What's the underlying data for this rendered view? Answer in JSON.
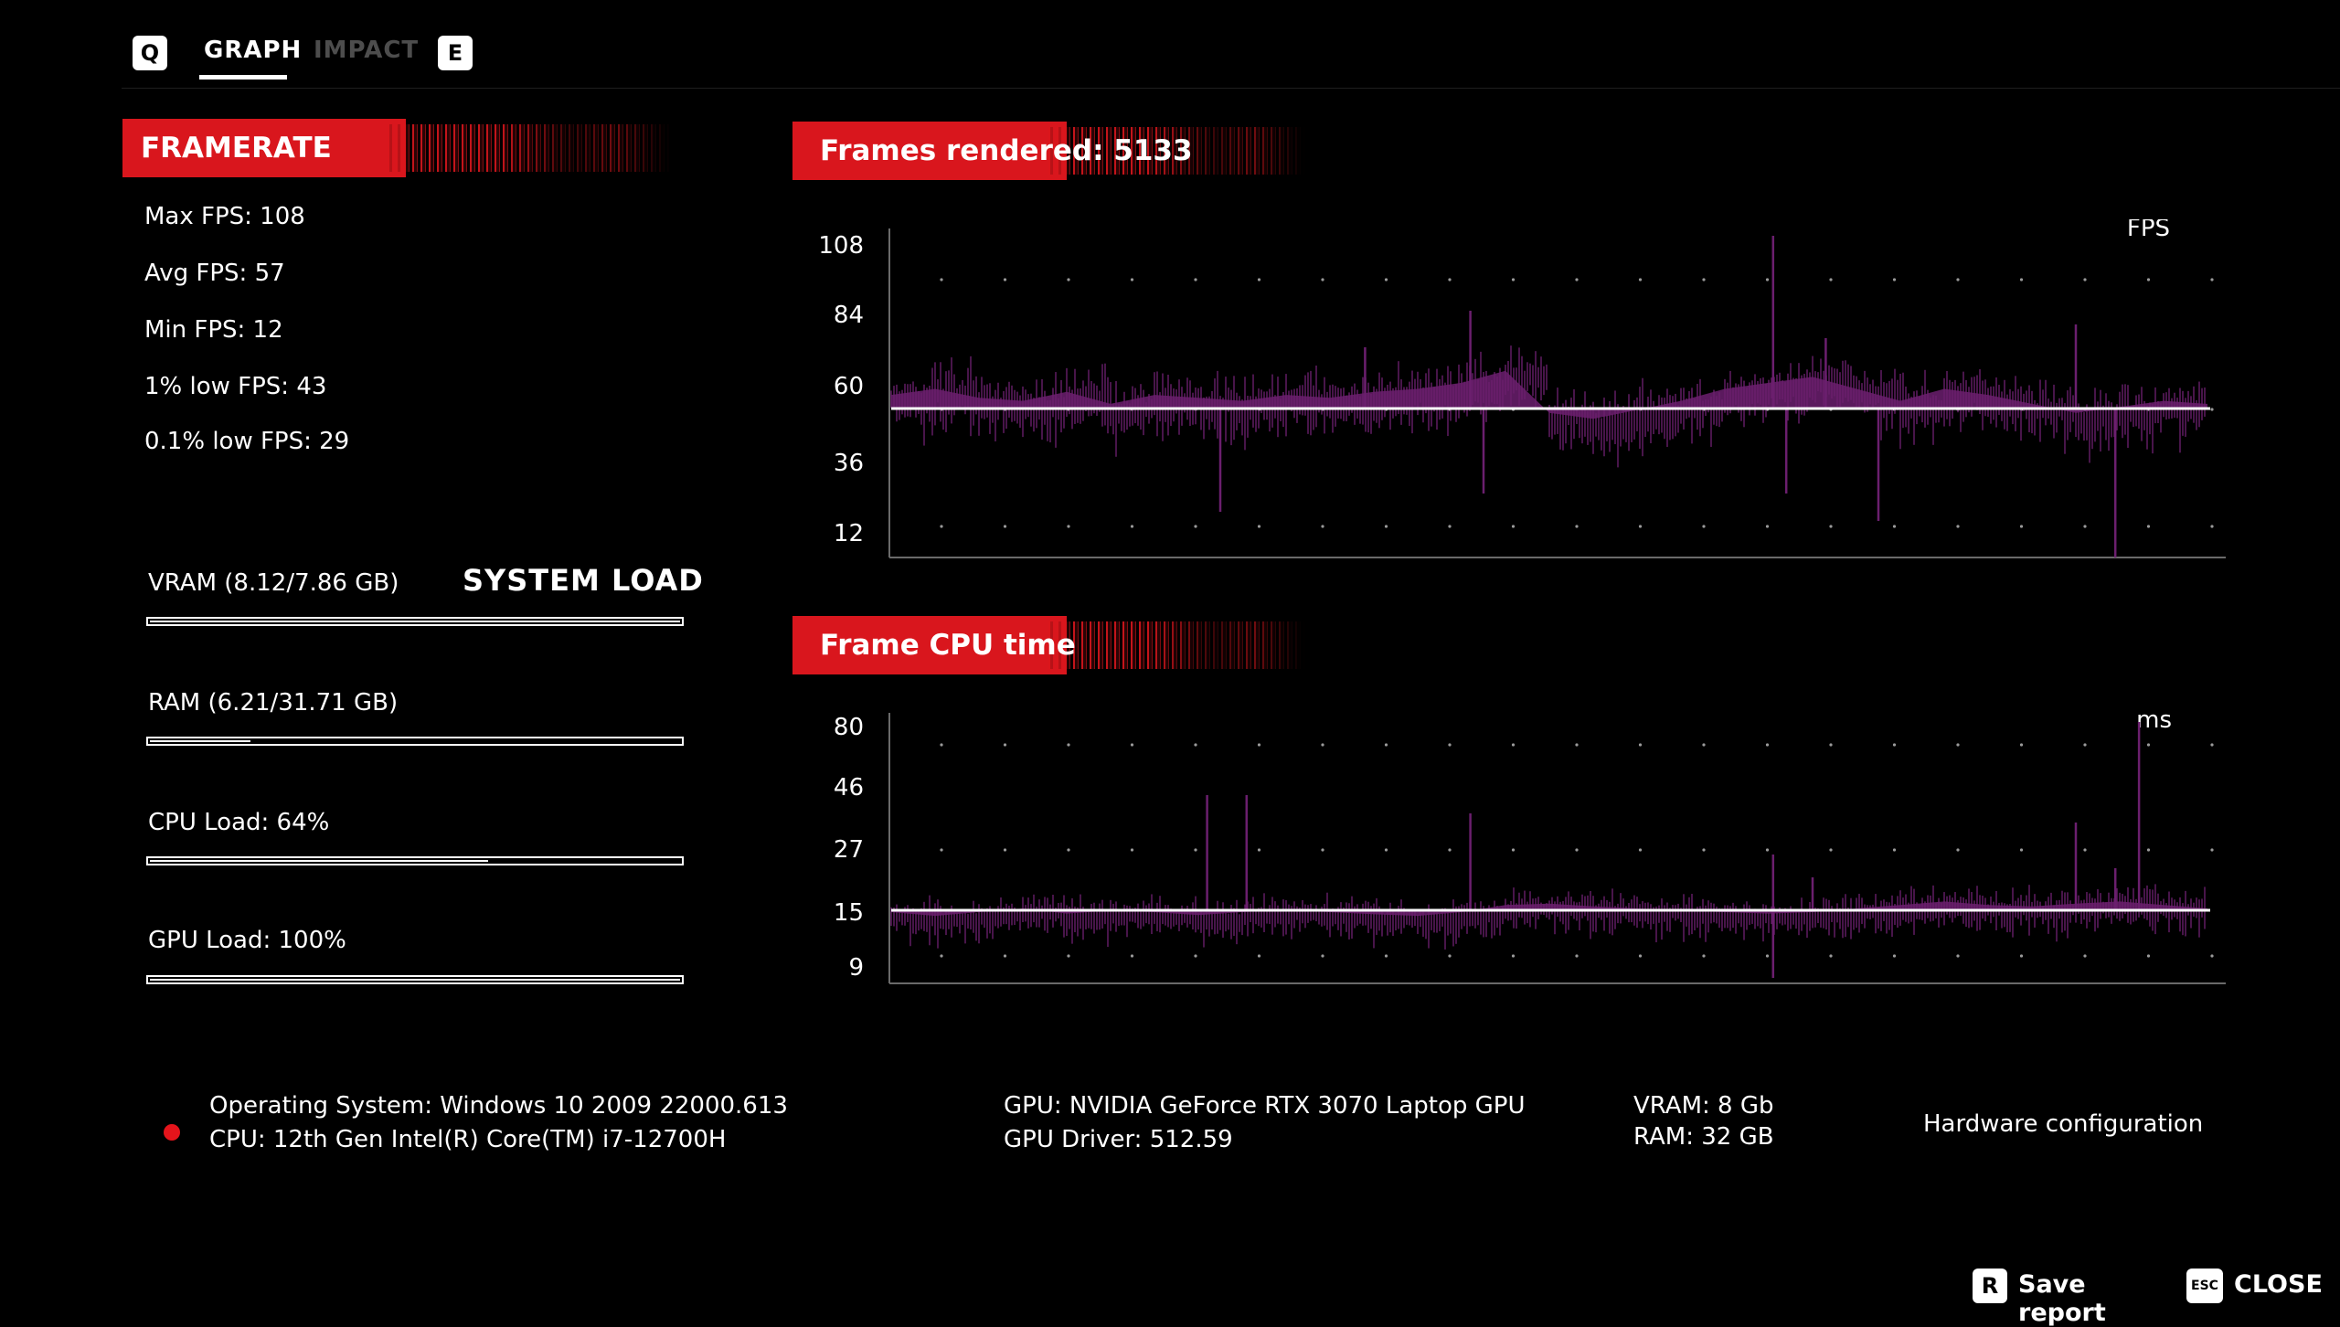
{
  "tabs": {
    "left_key": "Q",
    "right_key": "E",
    "items": [
      {
        "label": "GRAPH",
        "active": true
      },
      {
        "label": "IMPACT",
        "active": false
      }
    ]
  },
  "framerate": {
    "title": "FRAMERATE",
    "stats": [
      "Max FPS: 108",
      "Avg FPS: 57",
      "Min FPS: 12",
      "1% low FPS: 43",
      "0.1% low FPS: 29"
    ]
  },
  "system_load": {
    "title": "SYSTEM LOAD",
    "items": [
      {
        "label": "VRAM (8.12/7.86 GB)",
        "fraction": 1.0
      },
      {
        "label": "RAM (6.21/31.71 GB)",
        "fraction": 0.196
      },
      {
        "label": "CPU Load: 64%",
        "fraction": 0.64
      },
      {
        "label": "GPU Load: 100%",
        "fraction": 1.0
      }
    ]
  },
  "fps_chart": {
    "title": "Frames rendered: 5133",
    "unit": "FPS",
    "y_ticks": [
      "108",
      "84",
      "60",
      "36",
      "12"
    ]
  },
  "cpu_chart": {
    "title": "Frame CPU time",
    "unit": "ms",
    "y_ticks": [
      "80",
      "46",
      "27",
      "15",
      "9"
    ]
  },
  "chart_data": [
    {
      "type": "line",
      "title": "Frames rendered: 5133",
      "ylabel": "FPS",
      "y_ticks": [
        108,
        84,
        60,
        36,
        12
      ],
      "ylim": [
        12,
        108
      ],
      "grid": true,
      "series": [
        {
          "values": [
            58,
            60,
            57,
            56,
            59,
            55,
            58,
            57,
            56,
            58,
            57,
            59,
            60,
            62,
            66,
            52,
            50,
            53,
            56,
            60,
            62,
            64,
            60,
            56,
            60,
            58,
            55,
            52,
            54,
            56,
            55
          ]
        }
      ],
      "average": 57
    },
    {
      "type": "line",
      "title": "Frame CPU time",
      "ylabel": "ms",
      "y_ticks": [
        80,
        46,
        27,
        15,
        9
      ],
      "scale": "log",
      "grid": true,
      "series": [
        {
          "values": [
            15,
            14.5,
            15,
            15.5,
            14.8,
            15.2,
            15,
            14.6,
            15,
            15.3,
            15,
            14.7,
            14.5,
            15,
            16,
            16.2,
            15.8,
            15.5,
            15.2,
            15,
            14.8,
            15,
            15.5,
            16,
            16.5,
            16,
            15.8,
            16.2,
            16.5,
            16,
            15.5
          ]
        }
      ],
      "average": 15
    }
  ],
  "hardware": {
    "os": "Operating System: Windows 10 2009 22000.613",
    "cpu": "CPU: 12th Gen Intel(R) Core(TM) i7-12700H",
    "gpu": "GPU: NVIDIA GeForce RTX 3070 Laptop GPU",
    "gpu_driver": "GPU Driver: 512.59",
    "vram": "VRAM: 8 Gb",
    "ram": "RAM: 32 GB",
    "label": "Hardware configuration"
  },
  "footer": {
    "save_key": "R",
    "save_label": "Save report",
    "close_key": "ESC",
    "close_label": "CLOSE"
  },
  "colors": {
    "accent_red": "#d9161d",
    "series_purple": "#6b1f6e",
    "average_line": "#ffffff"
  }
}
